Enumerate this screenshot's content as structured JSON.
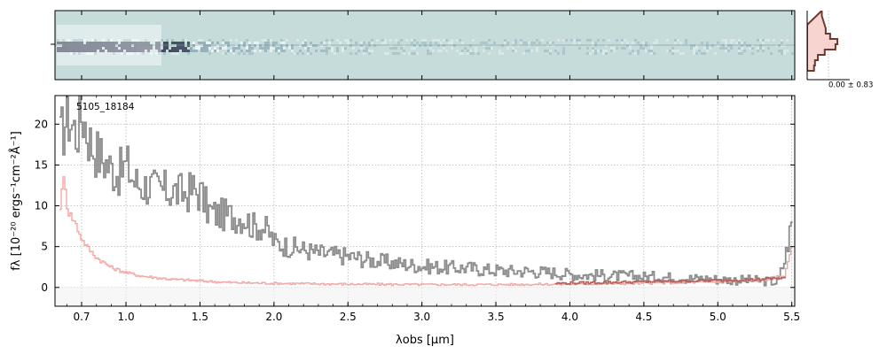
{
  "chart_data": {
    "type": "line",
    "object_label": "5105_18184",
    "xlabel": "λobs [μm]",
    "ylabel": "fλ [10⁻²⁰ ergs⁻¹cm⁻²Å⁻¹]",
    "xlim": [
      0.52,
      5.52
    ],
    "ylim": [
      -2.3,
      23.5
    ],
    "x_tick_labels": [
      "0.7",
      "1.0",
      "1.5",
      "2.0",
      "2.5",
      "3.0",
      "3.5",
      "4.0",
      "4.5",
      "5.0",
      "5.5"
    ],
    "y_tick_labels": [
      "0",
      "5",
      "10",
      "15",
      "20"
    ],
    "grid": true,
    "spectrum_2d_panel": true,
    "histogram_annotation": "0.00 ± 0.83",
    "colors": {
      "flux": "#8c8c8c",
      "error": "#f4a7a3",
      "model": "#b5605a",
      "histogram_edge": "#6b3a2e",
      "histogram_fill": "#f6c9c4",
      "spectrum_background": "#c5dcda"
    },
    "series": [
      {
        "role": "flux",
        "x": [
          0.55,
          0.6,
          0.63,
          0.66,
          0.7,
          0.75,
          0.8,
          0.85,
          0.9,
          0.95,
          1.0,
          1.05,
          1.1,
          1.15,
          1.2,
          1.3,
          1.4,
          1.45,
          1.5,
          1.55,
          1.6,
          1.7,
          1.8,
          1.85,
          1.9,
          1.95,
          2.0,
          2.05,
          2.1,
          2.2,
          2.3,
          2.4,
          2.5,
          2.6,
          2.7,
          2.8,
          2.9,
          3.0,
          3.1,
          3.2,
          3.3,
          3.4,
          3.5,
          3.6,
          3.7,
          3.8,
          3.9,
          4.0,
          4.1,
          4.2,
          4.3,
          4.4,
          4.5,
          4.6,
          4.7,
          4.8,
          4.9,
          5.0,
          5.1,
          5.2,
          5.3,
          5.4,
          5.45,
          5.5
        ],
        "y": [
          18,
          21.5,
          20,
          19,
          21.5,
          18,
          16.5,
          15.5,
          14.5,
          14,
          15,
          13,
          12.5,
          12.5,
          12,
          11.8,
          11.5,
          12,
          11.5,
          9.5,
          9,
          8.8,
          8.5,
          7.5,
          7.5,
          7,
          5.5,
          5.2,
          5.0,
          4.6,
          4.2,
          4.0,
          3.8,
          3.5,
          3.2,
          3.0,
          2.8,
          2.6,
          2.5,
          2.4,
          2.4,
          2.2,
          2.1,
          2.0,
          2.0,
          1.9,
          1.8,
          1.6,
          1.5,
          1.5,
          1.4,
          1.4,
          1.3,
          1.3,
          1.2,
          1.1,
          1.1,
          1.0,
          0.9,
          0.9,
          0.8,
          0.6,
          3.5,
          8.5
        ]
      },
      {
        "role": "error",
        "x": [
          0.55,
          0.58,
          0.6,
          0.65,
          0.7,
          0.75,
          0.8,
          0.9,
          1.0,
          1.1,
          1.2,
          1.3,
          1.5,
          1.7,
          2.0,
          2.5,
          3.0,
          3.5,
          4.0,
          4.5,
          5.0,
          5.3,
          5.45,
          5.5
        ],
        "y": [
          10,
          14,
          9.5,
          8,
          5.8,
          4.6,
          3.6,
          2.4,
          1.8,
          1.4,
          1.2,
          1.0,
          0.8,
          0.6,
          0.5,
          0.4,
          0.35,
          0.35,
          0.4,
          0.5,
          0.7,
          0.9,
          1.5,
          5.5
        ]
      },
      {
        "role": "model",
        "x": [
          3.9,
          4.2,
          4.5,
          4.8,
          5.1,
          5.3,
          5.45
        ],
        "y": [
          0.5,
          0.6,
          0.7,
          0.8,
          0.9,
          1.0,
          1.2
        ]
      }
    ]
  }
}
